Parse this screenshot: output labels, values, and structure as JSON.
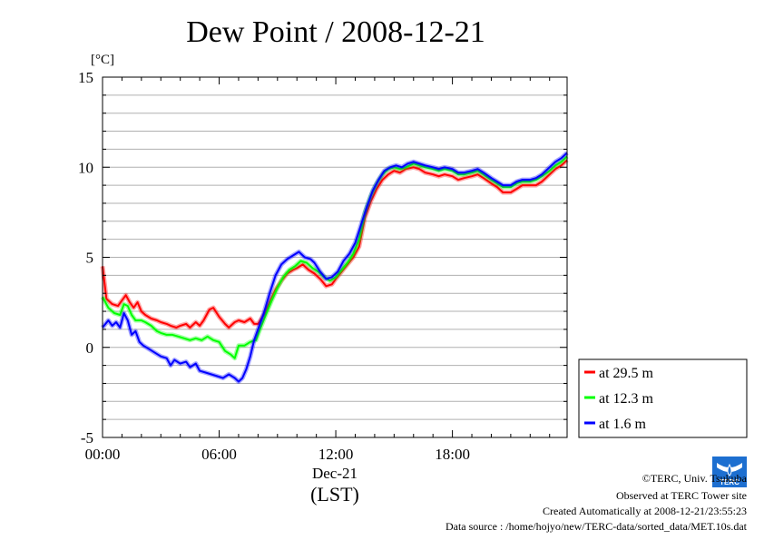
{
  "chart_data": {
    "type": "line",
    "title": "Dew Point / 2008-12-21",
    "y_unit": "[°C]",
    "ylim": [
      -5,
      15
    ],
    "y_ticks": [
      "15",
      "10",
      "5",
      "0",
      "-5"
    ],
    "y_tick_values": [
      15,
      10,
      5,
      0,
      -5
    ],
    "xlim": [
      0,
      23.9
    ],
    "x_ticks": [
      "00:00",
      "06:00",
      "12:00",
      "18:00"
    ],
    "x_tick_values": [
      0,
      6,
      12,
      18
    ],
    "x_date_label": "Dec-21",
    "xlabel": "(LST)",
    "grid": true,
    "legend_position": "right",
    "series": [
      {
        "name": "at 29.5 m",
        "color": "#ff0000",
        "points": [
          [
            0,
            4.5
          ],
          [
            0.2,
            2.7
          ],
          [
            0.5,
            2.4
          ],
          [
            0.8,
            2.3
          ],
          [
            1.0,
            2.6
          ],
          [
            1.2,
            2.9
          ],
          [
            1.4,
            2.5
          ],
          [
            1.6,
            2.2
          ],
          [
            1.8,
            2.5
          ],
          [
            2.0,
            2.0
          ],
          [
            2.2,
            1.8
          ],
          [
            2.5,
            1.6
          ],
          [
            2.8,
            1.5
          ],
          [
            3.0,
            1.4
          ],
          [
            3.3,
            1.3
          ],
          [
            3.5,
            1.2
          ],
          [
            3.8,
            1.1
          ],
          [
            4.0,
            1.2
          ],
          [
            4.3,
            1.3
          ],
          [
            4.5,
            1.1
          ],
          [
            4.8,
            1.4
          ],
          [
            5.0,
            1.2
          ],
          [
            5.2,
            1.5
          ],
          [
            5.5,
            2.1
          ],
          [
            5.7,
            2.2
          ],
          [
            6.0,
            1.7
          ],
          [
            6.3,
            1.3
          ],
          [
            6.5,
            1.1
          ],
          [
            6.8,
            1.4
          ],
          [
            7.0,
            1.5
          ],
          [
            7.3,
            1.4
          ],
          [
            7.6,
            1.6
          ],
          [
            7.8,
            1.3
          ],
          [
            8.0,
            1.3
          ],
          [
            8.3,
            1.8
          ],
          [
            8.6,
            2.5
          ],
          [
            8.9,
            3.2
          ],
          [
            9.2,
            3.7
          ],
          [
            9.5,
            4.1
          ],
          [
            9.8,
            4.3
          ],
          [
            10.0,
            4.4
          ],
          [
            10.3,
            4.6
          ],
          [
            10.6,
            4.3
          ],
          [
            10.9,
            4.1
          ],
          [
            11.2,
            3.8
          ],
          [
            11.5,
            3.4
          ],
          [
            11.8,
            3.5
          ],
          [
            12.0,
            3.8
          ],
          [
            12.3,
            4.2
          ],
          [
            12.6,
            4.6
          ],
          [
            12.9,
            5.0
          ],
          [
            13.2,
            5.6
          ],
          [
            13.5,
            7.2
          ],
          [
            13.8,
            8.1
          ],
          [
            14.1,
            8.8
          ],
          [
            14.4,
            9.3
          ],
          [
            14.7,
            9.6
          ],
          [
            15.0,
            9.8
          ],
          [
            15.3,
            9.7
          ],
          [
            15.6,
            9.9
          ],
          [
            16.0,
            10.0
          ],
          [
            16.3,
            9.9
          ],
          [
            16.6,
            9.7
          ],
          [
            17.0,
            9.6
          ],
          [
            17.3,
            9.5
          ],
          [
            17.6,
            9.6
          ],
          [
            18.0,
            9.5
          ],
          [
            18.3,
            9.3
          ],
          [
            18.6,
            9.4
          ],
          [
            19.0,
            9.5
          ],
          [
            19.3,
            9.6
          ],
          [
            19.6,
            9.4
          ],
          [
            20.0,
            9.1
          ],
          [
            20.3,
            8.9
          ],
          [
            20.6,
            8.6
          ],
          [
            21.0,
            8.6
          ],
          [
            21.3,
            8.8
          ],
          [
            21.6,
            9.0
          ],
          [
            22.0,
            9.0
          ],
          [
            22.3,
            9.0
          ],
          [
            22.6,
            9.2
          ],
          [
            23.0,
            9.6
          ],
          [
            23.3,
            9.9
          ],
          [
            23.6,
            10.1
          ],
          [
            23.9,
            10.4
          ]
        ]
      },
      {
        "name": "at 12.3 m",
        "color": "#00ff00",
        "points": [
          [
            0,
            2.8
          ],
          [
            0.3,
            2.2
          ],
          [
            0.6,
            1.9
          ],
          [
            0.9,
            1.8
          ],
          [
            1.1,
            2.4
          ],
          [
            1.3,
            2.3
          ],
          [
            1.5,
            1.8
          ],
          [
            1.7,
            1.5
          ],
          [
            2.0,
            1.5
          ],
          [
            2.2,
            1.4
          ],
          [
            2.5,
            1.2
          ],
          [
            2.8,
            0.9
          ],
          [
            3.0,
            0.8
          ],
          [
            3.3,
            0.7
          ],
          [
            3.6,
            0.7
          ],
          [
            3.9,
            0.6
          ],
          [
            4.2,
            0.5
          ],
          [
            4.5,
            0.4
          ],
          [
            4.8,
            0.5
          ],
          [
            5.1,
            0.4
          ],
          [
            5.4,
            0.6
          ],
          [
            5.7,
            0.4
          ],
          [
            6.0,
            0.3
          ],
          [
            6.3,
            -0.2
          ],
          [
            6.6,
            -0.4
          ],
          [
            6.8,
            -0.6
          ],
          [
            7.0,
            0.1
          ],
          [
            7.3,
            0.1
          ],
          [
            7.6,
            0.3
          ],
          [
            7.9,
            0.4
          ],
          [
            8.1,
            1.0
          ],
          [
            8.4,
            1.8
          ],
          [
            8.7,
            2.6
          ],
          [
            9.0,
            3.3
          ],
          [
            9.3,
            3.9
          ],
          [
            9.6,
            4.3
          ],
          [
            9.9,
            4.5
          ],
          [
            10.2,
            4.8
          ],
          [
            10.5,
            4.7
          ],
          [
            10.8,
            4.4
          ],
          [
            11.1,
            4.2
          ],
          [
            11.4,
            3.9
          ],
          [
            11.7,
            3.7
          ],
          [
            12.0,
            3.9
          ],
          [
            12.3,
            4.3
          ],
          [
            12.6,
            4.7
          ],
          [
            12.9,
            5.2
          ],
          [
            13.2,
            6.0
          ],
          [
            13.5,
            7.5
          ],
          [
            13.8,
            8.4
          ],
          [
            14.1,
            9.1
          ],
          [
            14.4,
            9.6
          ],
          [
            14.7,
            9.9
          ],
          [
            15.0,
            10.0
          ],
          [
            15.3,
            9.9
          ],
          [
            15.6,
            10.0
          ],
          [
            16.0,
            10.2
          ],
          [
            16.3,
            10.1
          ],
          [
            16.6,
            10.0
          ],
          [
            17.0,
            9.9
          ],
          [
            17.3,
            9.8
          ],
          [
            17.6,
            9.9
          ],
          [
            18.0,
            9.8
          ],
          [
            18.3,
            9.6
          ],
          [
            18.6,
            9.6
          ],
          [
            19.0,
            9.7
          ],
          [
            19.3,
            9.8
          ],
          [
            19.6,
            9.6
          ],
          [
            20.0,
            9.3
          ],
          [
            20.3,
            9.1
          ],
          [
            20.6,
            8.9
          ],
          [
            21.0,
            8.9
          ],
          [
            21.3,
            9.1
          ],
          [
            21.6,
            9.2
          ],
          [
            22.0,
            9.2
          ],
          [
            22.3,
            9.3
          ],
          [
            22.6,
            9.5
          ],
          [
            23.0,
            9.8
          ],
          [
            23.3,
            10.1
          ],
          [
            23.6,
            10.3
          ],
          [
            23.9,
            10.6
          ]
        ]
      },
      {
        "name": "at 1.6 m",
        "color": "#0000ff",
        "points": [
          [
            0,
            1.1
          ],
          [
            0.3,
            1.5
          ],
          [
            0.5,
            1.2
          ],
          [
            0.7,
            1.4
          ],
          [
            0.9,
            1.1
          ],
          [
            1.1,
            1.9
          ],
          [
            1.3,
            1.5
          ],
          [
            1.5,
            0.7
          ],
          [
            1.7,
            0.9
          ],
          [
            1.9,
            0.3
          ],
          [
            2.1,
            0.1
          ],
          [
            2.4,
            -0.1
          ],
          [
            2.7,
            -0.3
          ],
          [
            3.0,
            -0.5
          ],
          [
            3.3,
            -0.6
          ],
          [
            3.5,
            -1.0
          ],
          [
            3.7,
            -0.7
          ],
          [
            4.0,
            -0.9
          ],
          [
            4.3,
            -0.8
          ],
          [
            4.5,
            -1.1
          ],
          [
            4.8,
            -0.9
          ],
          [
            5.0,
            -1.3
          ],
          [
            5.3,
            -1.4
          ],
          [
            5.6,
            -1.5
          ],
          [
            5.9,
            -1.6
          ],
          [
            6.2,
            -1.7
          ],
          [
            6.5,
            -1.5
          ],
          [
            6.8,
            -1.7
          ],
          [
            7.0,
            -1.9
          ],
          [
            7.2,
            -1.7
          ],
          [
            7.4,
            -1.2
          ],
          [
            7.6,
            -0.5
          ],
          [
            7.8,
            0.4
          ],
          [
            8.0,
            1.0
          ],
          [
            8.3,
            1.9
          ],
          [
            8.6,
            3.0
          ],
          [
            8.9,
            4.0
          ],
          [
            9.2,
            4.6
          ],
          [
            9.5,
            4.9
          ],
          [
            9.8,
            5.1
          ],
          [
            10.1,
            5.3
          ],
          [
            10.4,
            5.0
          ],
          [
            10.7,
            4.9
          ],
          [
            10.9,
            4.7
          ],
          [
            11.2,
            4.2
          ],
          [
            11.5,
            3.8
          ],
          [
            11.8,
            3.9
          ],
          [
            12.1,
            4.2
          ],
          [
            12.4,
            4.8
          ],
          [
            12.7,
            5.2
          ],
          [
            13.0,
            5.8
          ],
          [
            13.3,
            6.8
          ],
          [
            13.6,
            7.8
          ],
          [
            13.9,
            8.7
          ],
          [
            14.2,
            9.3
          ],
          [
            14.5,
            9.8
          ],
          [
            14.8,
            10.0
          ],
          [
            15.1,
            10.1
          ],
          [
            15.4,
            10.0
          ],
          [
            15.7,
            10.2
          ],
          [
            16.0,
            10.3
          ],
          [
            16.3,
            10.2
          ],
          [
            16.6,
            10.1
          ],
          [
            17.0,
            10.0
          ],
          [
            17.3,
            9.9
          ],
          [
            17.6,
            10.0
          ],
          [
            18.0,
            9.9
          ],
          [
            18.3,
            9.7
          ],
          [
            18.6,
            9.7
          ],
          [
            19.0,
            9.8
          ],
          [
            19.3,
            9.9
          ],
          [
            19.6,
            9.7
          ],
          [
            20.0,
            9.4
          ],
          [
            20.3,
            9.2
          ],
          [
            20.6,
            9.0
          ],
          [
            21.0,
            9.0
          ],
          [
            21.3,
            9.2
          ],
          [
            21.6,
            9.3
          ],
          [
            22.0,
            9.3
          ],
          [
            22.3,
            9.4
          ],
          [
            22.6,
            9.6
          ],
          [
            23.0,
            10.0
          ],
          [
            23.3,
            10.3
          ],
          [
            23.6,
            10.5
          ],
          [
            23.9,
            10.8
          ]
        ]
      }
    ]
  },
  "credits": {
    "copyright": "©TERC, Univ. Tsukuba",
    "observed": "Observed at TERC Tower site",
    "created": "Created Automatically at 2008-12-21/23:55:23",
    "source": "Data source : /home/hojyo/new/TERC-data/sorted_data/MET.10s.dat",
    "logo_text": "TERC"
  }
}
